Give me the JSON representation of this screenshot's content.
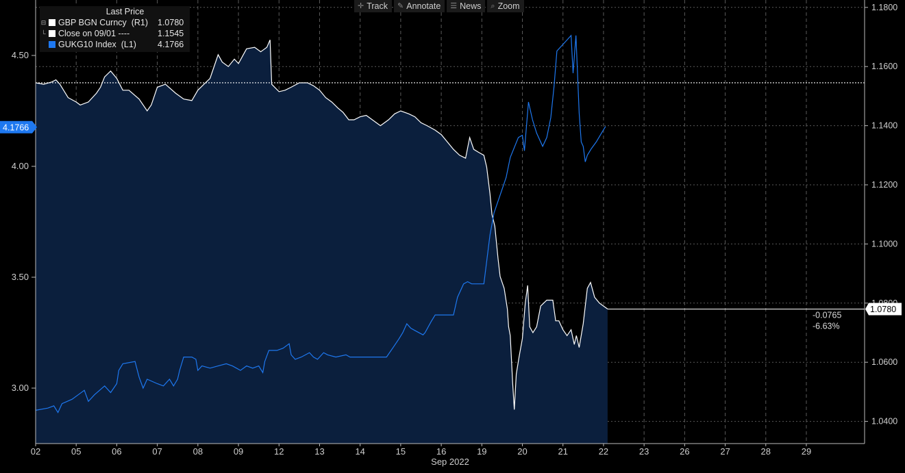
{
  "toolbar": {
    "track": "Track",
    "annotate": "Annotate",
    "news": "News",
    "zoom": "Zoom"
  },
  "legend": {
    "title": "Last Price",
    "items": [
      {
        "name": "GBP BGN Curncy  (R1)",
        "value": "1.0780",
        "color": "#ffffff"
      },
      {
        "name": "Close on 09/01 ----",
        "value": "1.1545",
        "color": "#ffffff"
      },
      {
        "name": "GUKG10 Index  (L1)",
        "value": "4.1766",
        "color": "#1e78f0"
      }
    ]
  },
  "chart_data": {
    "type": "line",
    "x_axis_label": "Sep 2022",
    "x_ticks": [
      "02",
      "05",
      "06",
      "07",
      "08",
      "09",
      "12",
      "13",
      "14",
      "15",
      "16",
      "19",
      "20",
      "21",
      "22",
      "23",
      "26",
      "27",
      "28",
      "29"
    ],
    "left_axis": {
      "ticks": [
        "3.00",
        "3.50",
        "4.00",
        "4.50"
      ],
      "ylim": [
        2.75,
        4.75
      ],
      "last_value_label": "4.1766"
    },
    "right_axis": {
      "ticks": [
        "1.0400",
        "1.0600",
        "1.0800",
        "1.1000",
        "1.1200",
        "1.1400",
        "1.1600",
        "1.1800"
      ],
      "ylim": [
        1.0325,
        1.1825
      ],
      "last_value_label": "1.0780"
    },
    "change_labels": {
      "abs": "-0.0765",
      "pct": "-6.63%"
    },
    "close_reference": 1.1545,
    "series": [
      {
        "name": "GBP BGN Curncy (R1)",
        "axis": "right",
        "color": "#ffffff",
        "area_fill": "#0b1f3d",
        "points": [
          [
            0,
            1.1545
          ],
          [
            0.2,
            1.154
          ],
          [
            0.4,
            1.1548
          ],
          [
            0.5,
            1.1555
          ],
          [
            0.6,
            1.154
          ],
          [
            0.8,
            1.1495
          ],
          [
            1.0,
            1.148
          ],
          [
            1.1,
            1.147
          ],
          [
            1.3,
            1.148
          ],
          [
            1.5,
            1.151
          ],
          [
            1.6,
            1.153
          ],
          [
            1.7,
            1.1565
          ],
          [
            1.85,
            1.1585
          ],
          [
            2.0,
            1.156
          ],
          [
            2.15,
            1.152
          ],
          [
            2.3,
            1.152
          ],
          [
            2.55,
            1.149
          ],
          [
            2.75,
            1.145
          ],
          [
            2.85,
            1.147
          ],
          [
            3.0,
            1.153
          ],
          [
            3.2,
            1.154
          ],
          [
            3.45,
            1.151
          ],
          [
            3.65,
            1.149
          ],
          [
            3.85,
            1.1485
          ],
          [
            4.0,
            1.152
          ],
          [
            4.15,
            1.154
          ],
          [
            4.3,
            1.156
          ],
          [
            4.5,
            1.164
          ],
          [
            4.6,
            1.1615
          ],
          [
            4.75,
            1.16
          ],
          [
            4.9,
            1.1625
          ],
          [
            5.0,
            1.161
          ],
          [
            5.1,
            1.1635
          ],
          [
            5.2,
            1.166
          ],
          [
            5.4,
            1.1665
          ],
          [
            5.55,
            1.165
          ],
          [
            5.7,
            1.1665
          ],
          [
            5.78,
            1.169
          ],
          [
            5.82,
            1.154
          ],
          [
            6.0,
            1.1515
          ],
          [
            6.15,
            1.152
          ],
          [
            6.3,
            1.153
          ],
          [
            6.5,
            1.1545
          ],
          [
            6.7,
            1.1545
          ],
          [
            6.85,
            1.1535
          ],
          [
            7.0,
            1.152
          ],
          [
            7.15,
            1.1495
          ],
          [
            7.3,
            1.148
          ],
          [
            7.45,
            1.146
          ],
          [
            7.58,
            1.1445
          ],
          [
            7.72,
            1.142
          ],
          [
            7.85,
            1.142
          ],
          [
            8.0,
            1.143
          ],
          [
            8.15,
            1.1435
          ],
          [
            8.35,
            1.1415
          ],
          [
            8.5,
            1.14
          ],
          [
            8.7,
            1.142
          ],
          [
            8.85,
            1.144
          ],
          [
            9.0,
            1.145
          ],
          [
            9.2,
            1.144
          ],
          [
            9.35,
            1.143
          ],
          [
            9.5,
            1.141
          ],
          [
            9.65,
            1.14
          ],
          [
            9.85,
            1.1385
          ],
          [
            10.0,
            1.137
          ],
          [
            10.15,
            1.1345
          ],
          [
            10.3,
            1.132
          ],
          [
            10.45,
            1.13
          ],
          [
            10.6,
            1.129
          ],
          [
            10.7,
            1.136
          ],
          [
            10.8,
            1.132
          ],
          [
            10.92,
            1.131
          ],
          [
            11.05,
            1.13
          ],
          [
            11.12,
            1.126
          ],
          [
            11.2,
            1.117
          ],
          [
            11.25,
            1.11
          ],
          [
            11.32,
            1.106
          ],
          [
            11.4,
            1.095
          ],
          [
            11.45,
            1.089
          ],
          [
            11.55,
            1.085
          ],
          [
            11.63,
            1.078
          ],
          [
            11.66,
            1.072
          ],
          [
            11.7,
            1.069
          ],
          [
            11.76,
            1.053
          ],
          [
            11.8,
            1.044
          ],
          [
            11.85,
            1.056
          ],
          [
            11.92,
            1.062
          ],
          [
            12.0,
            1.068
          ],
          [
            12.07,
            1.08
          ],
          [
            12.13,
            1.086
          ],
          [
            12.18,
            1.072
          ],
          [
            12.26,
            1.07
          ],
          [
            12.35,
            1.072
          ],
          [
            12.45,
            1.079
          ],
          [
            12.6,
            1.081
          ],
          [
            12.75,
            1.081
          ],
          [
            12.82,
            1.074
          ],
          [
            12.9,
            1.074
          ],
          [
            13.0,
            1.071
          ],
          [
            13.1,
            1.069
          ],
          [
            13.2,
            1.071
          ],
          [
            13.28,
            1.066
          ],
          [
            13.33,
            1.069
          ],
          [
            13.4,
            1.065
          ],
          [
            13.5,
            1.073
          ],
          [
            13.6,
            1.085
          ],
          [
            13.68,
            1.087
          ],
          [
            13.78,
            1.082
          ],
          [
            13.9,
            1.08
          ],
          [
            14.0,
            1.079
          ],
          [
            14.1,
            1.078
          ]
        ]
      },
      {
        "name": "GUKG10 Index (L1)",
        "axis": "left",
        "color": "#1e78f0",
        "points": [
          [
            0,
            2.9
          ],
          [
            0.3,
            2.91
          ],
          [
            0.45,
            2.92
          ],
          [
            0.55,
            2.89
          ],
          [
            0.65,
            2.93
          ],
          [
            0.9,
            2.95
          ],
          [
            1.05,
            2.97
          ],
          [
            1.2,
            2.99
          ],
          [
            1.3,
            2.94
          ],
          [
            1.45,
            2.97
          ],
          [
            1.7,
            3.01
          ],
          [
            1.85,
            2.98
          ],
          [
            2.0,
            3.02
          ],
          [
            2.05,
            3.08
          ],
          [
            2.15,
            3.11
          ],
          [
            2.45,
            3.12
          ],
          [
            2.55,
            3.05
          ],
          [
            2.65,
            3.0
          ],
          [
            2.75,
            3.04
          ],
          [
            3.0,
            3.02
          ],
          [
            3.15,
            3.01
          ],
          [
            3.3,
            3.04
          ],
          [
            3.4,
            3.01
          ],
          [
            3.5,
            3.04
          ],
          [
            3.55,
            3.08
          ],
          [
            3.65,
            3.14
          ],
          [
            3.85,
            3.14
          ],
          [
            3.95,
            3.13
          ],
          [
            4.0,
            3.08
          ],
          [
            4.1,
            3.1
          ],
          [
            4.3,
            3.09
          ],
          [
            4.5,
            3.1
          ],
          [
            4.7,
            3.11
          ],
          [
            4.85,
            3.1
          ],
          [
            4.95,
            3.09
          ],
          [
            5.05,
            3.08
          ],
          [
            5.2,
            3.1
          ],
          [
            5.35,
            3.09
          ],
          [
            5.5,
            3.1
          ],
          [
            5.6,
            3.07
          ],
          [
            5.65,
            3.12
          ],
          [
            5.75,
            3.17
          ],
          [
            5.95,
            3.17
          ],
          [
            6.1,
            3.18
          ],
          [
            6.25,
            3.2
          ],
          [
            6.3,
            3.15
          ],
          [
            6.4,
            3.13
          ],
          [
            6.55,
            3.14
          ],
          [
            6.75,
            3.16
          ],
          [
            6.85,
            3.14
          ],
          [
            6.95,
            3.13
          ],
          [
            7.1,
            3.16
          ],
          [
            7.2,
            3.15
          ],
          [
            7.4,
            3.14
          ],
          [
            7.65,
            3.15
          ],
          [
            7.75,
            3.14
          ],
          [
            8.0,
            3.14
          ],
          [
            8.3,
            3.14
          ],
          [
            8.5,
            3.14
          ],
          [
            8.65,
            3.14
          ],
          [
            8.8,
            3.18
          ],
          [
            8.95,
            3.22
          ],
          [
            9.05,
            3.25
          ],
          [
            9.15,
            3.29
          ],
          [
            9.25,
            3.27
          ],
          [
            9.35,
            3.26
          ],
          [
            9.55,
            3.24
          ],
          [
            9.6,
            3.25
          ],
          [
            9.75,
            3.3
          ],
          [
            9.85,
            3.33
          ],
          [
            10.0,
            3.33
          ],
          [
            10.2,
            3.33
          ],
          [
            10.3,
            3.33
          ],
          [
            10.4,
            3.41
          ],
          [
            10.55,
            3.47
          ],
          [
            10.65,
            3.48
          ],
          [
            10.75,
            3.47
          ],
          [
            11.05,
            3.47
          ],
          [
            11.2,
            3.69
          ],
          [
            11.3,
            3.79
          ],
          [
            11.45,
            3.87
          ],
          [
            11.6,
            3.95
          ],
          [
            11.7,
            4.04
          ],
          [
            11.9,
            4.13
          ],
          [
            12.0,
            4.14
          ],
          [
            12.05,
            4.07
          ],
          [
            12.15,
            4.29
          ],
          [
            12.25,
            4.21
          ],
          [
            12.35,
            4.15
          ],
          [
            12.5,
            4.09
          ],
          [
            12.6,
            4.13
          ],
          [
            12.7,
            4.22
          ],
          [
            12.78,
            4.36
          ],
          [
            12.85,
            4.52
          ],
          [
            13.05,
            4.56
          ],
          [
            13.2,
            4.59
          ],
          [
            13.25,
            4.42
          ],
          [
            13.32,
            4.59
          ],
          [
            13.4,
            4.24
          ],
          [
            13.45,
            4.11
          ],
          [
            13.5,
            4.09
          ],
          [
            13.55,
            4.02
          ],
          [
            13.6,
            4.05
          ],
          [
            13.7,
            4.08
          ],
          [
            13.82,
            4.11
          ],
          [
            13.95,
            4.15
          ],
          [
            14.05,
            4.18
          ]
        ]
      }
    ]
  }
}
